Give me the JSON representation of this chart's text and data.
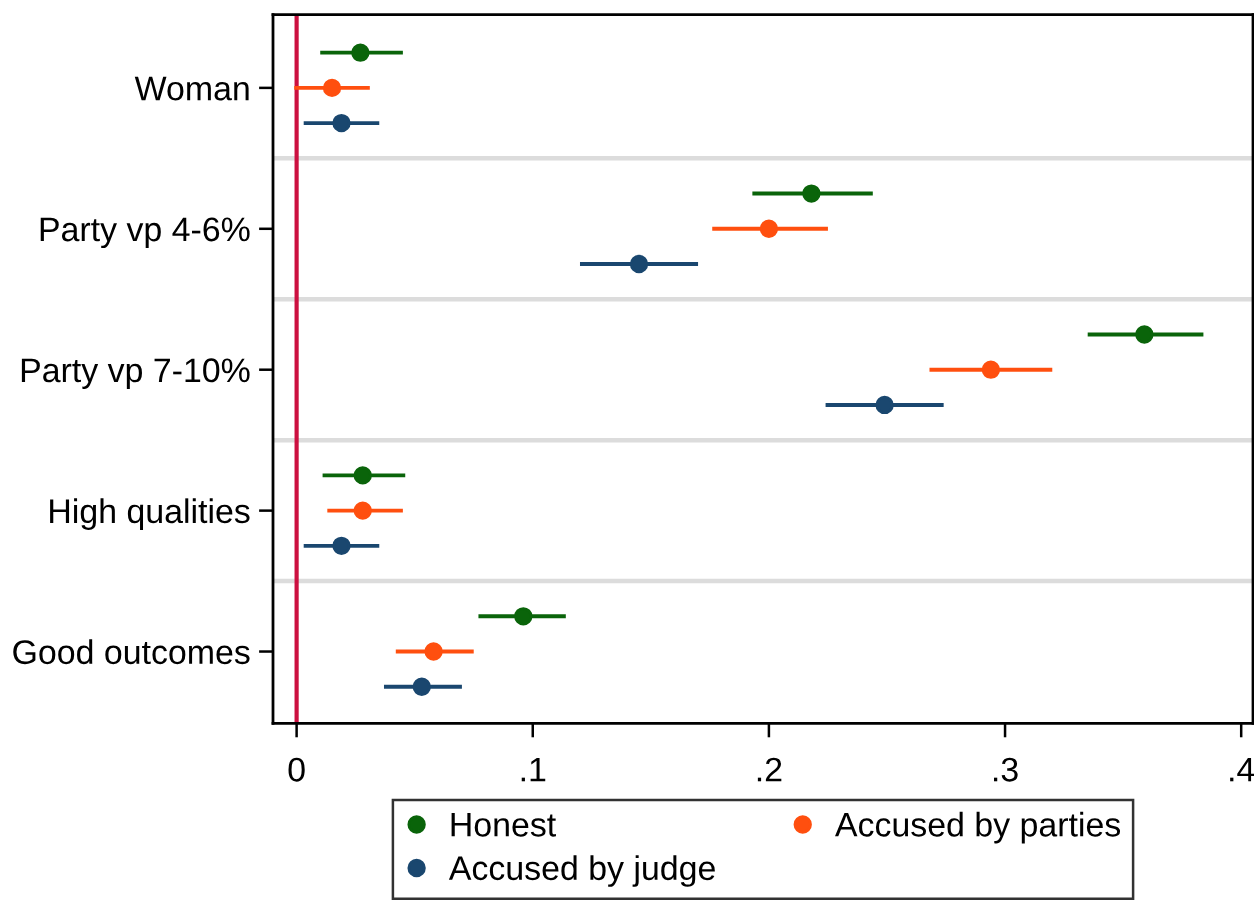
{
  "chart_data": {
    "type": "scatter",
    "orientation": "horizontal",
    "categories": [
      "Woman",
      "Party vp 4-6%",
      "Party vp 7-10%",
      "High qualities",
      "Good outcomes"
    ],
    "series": [
      {
        "name": "Honest",
        "color": "#0a640a",
        "values": [
          0.027,
          0.218,
          0.359,
          0.028,
          0.096
        ],
        "errors": [
          [
            0.01,
            0.045
          ],
          [
            0.193,
            0.244
          ],
          [
            0.335,
            0.384
          ],
          [
            0.011,
            0.046
          ],
          [
            0.077,
            0.114
          ]
        ]
      },
      {
        "name": "Accused by parties",
        "color": "#ff4f0f",
        "values": [
          0.015,
          0.2,
          0.294,
          0.028,
          0.058
        ],
        "errors": [
          [
            -0.001,
            0.031
          ],
          [
            0.176,
            0.225
          ],
          [
            0.268,
            0.32
          ],
          [
            0.013,
            0.045
          ],
          [
            0.042,
            0.075
          ]
        ]
      },
      {
        "name": "Accused by judge",
        "color": "#1a476f",
        "values": [
          0.019,
          0.145,
          0.249,
          0.019,
          0.053
        ],
        "errors": [
          [
            0.003,
            0.035
          ],
          [
            0.12,
            0.17
          ],
          [
            0.224,
            0.274
          ],
          [
            0.003,
            0.035
          ],
          [
            0.037,
            0.07
          ]
        ]
      }
    ],
    "xlim": [
      -0.01,
      0.405
    ],
    "xticks": [
      0,
      {
        "value": 0.1,
        "label": ".1"
      },
      {
        "value": 0.2,
        "label": ".2"
      },
      {
        "value": 0.3,
        "label": ".3"
      },
      {
        "value": 0.4,
        "label": ".4"
      }
    ],
    "ref_lines": [
      {
        "axis": "x",
        "value": 0,
        "color": "#cc1040"
      }
    ],
    "grid": "y",
    "legend": "bottom",
    "marker": "circle"
  }
}
